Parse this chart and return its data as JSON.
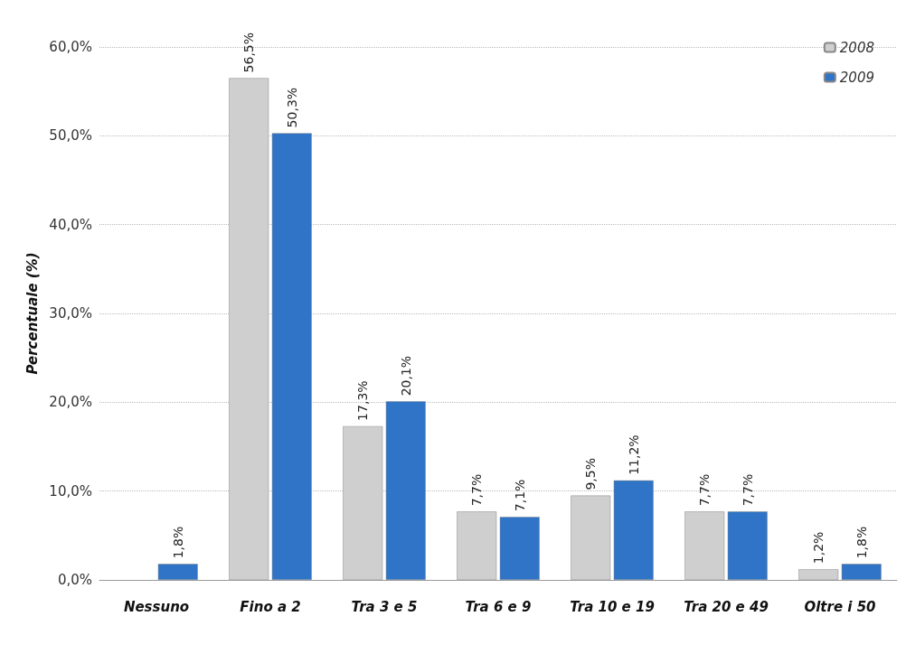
{
  "chart_data": {
    "type": "bar",
    "ylabel": "Percentuale (%)",
    "categories": [
      "Nessuno",
      "Fino a 2",
      "Tra 3 e 5",
      "Tra 6 e 9",
      "Tra 10 e 19",
      "Tra 20 e 49",
      "Oltre i 50"
    ],
    "series": [
      {
        "name": "2008",
        "color": "#cfcfcf",
        "values": [
          null,
          56.5,
          17.3,
          7.7,
          9.5,
          7.7,
          1.2
        ],
        "value_labels": [
          null,
          "56,5%",
          "17,3%",
          "7,7%",
          "9,5%",
          "7,7%",
          "1,2%"
        ]
      },
      {
        "name": "2009",
        "color": "#2f74c6",
        "values": [
          1.8,
          50.3,
          20.1,
          7.1,
          11.2,
          7.7,
          1.8
        ],
        "value_labels": [
          "1,8%",
          "50,3%",
          "20,1%",
          "7,1%",
          "11,2%",
          "7,7%",
          "1,8%"
        ]
      }
    ],
    "ylim": [
      0,
      60
    ],
    "yticks": [
      {
        "value": 0,
        "label": "0,0%"
      },
      {
        "value": 10,
        "label": "10,0%"
      },
      {
        "value": 20,
        "label": "20,0%"
      },
      {
        "value": 30,
        "label": "30,0%"
      },
      {
        "value": 40,
        "label": "40,0%"
      },
      {
        "value": 50,
        "label": "50,0%"
      },
      {
        "value": 60,
        "label": "60,0%"
      }
    ],
    "grid": "y",
    "legend": "top right"
  }
}
